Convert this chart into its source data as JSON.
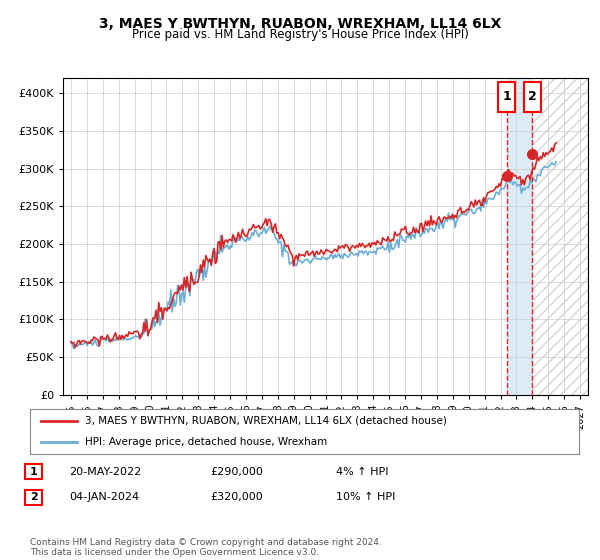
{
  "title": "3, MAES Y BWTHYN, RUABON, WREXHAM, LL14 6LX",
  "subtitle": "Price paid vs. HM Land Registry's House Price Index (HPI)",
  "ylabel_ticks": [
    "£0",
    "£50K",
    "£100K",
    "£150K",
    "£200K",
    "£250K",
    "£300K",
    "£350K",
    "£400K"
  ],
  "ytick_values": [
    0,
    50000,
    100000,
    150000,
    200000,
    250000,
    300000,
    350000,
    400000
  ],
  "ylim": [
    0,
    420000
  ],
  "xlim_start": 1994.5,
  "xlim_end": 2027.5,
  "xtick_years": [
    1995,
    1996,
    1997,
    1998,
    1999,
    2000,
    2001,
    2002,
    2003,
    2004,
    2005,
    2006,
    2007,
    2008,
    2009,
    2010,
    2011,
    2012,
    2013,
    2014,
    2015,
    2016,
    2017,
    2018,
    2019,
    2020,
    2021,
    2022,
    2023,
    2024,
    2025,
    2026,
    2027
  ],
  "hpi_color": "#6baed6",
  "price_color": "#d62728",
  "background_color": "#ffffff",
  "grid_color": "#cccccc",
  "sale1_date": 2022.38,
  "sale1_price": 290000,
  "sale2_date": 2024.01,
  "sale2_price": 320000,
  "legend_line1": "3, MAES Y BWTHYN, RUABON, WREXHAM, LL14 6LX (detached house)",
  "legend_line2": "HPI: Average price, detached house, Wrexham",
  "annotation1_num": "1",
  "annotation1_date": "20-MAY-2022",
  "annotation1_price": "£290,000",
  "annotation1_hpi": "4% ↑ HPI",
  "annotation2_num": "2",
  "annotation2_date": "04-JAN-2024",
  "annotation2_price": "£320,000",
  "annotation2_hpi": "10% ↑ HPI",
  "footer": "Contains HM Land Registry data © Crown copyright and database right 2024.\nThis data is licensed under the Open Government Licence v3.0.",
  "hatch_region_start": 2024.01,
  "shade_region_start": 2022.38,
  "shade_region_end": 2024.01
}
